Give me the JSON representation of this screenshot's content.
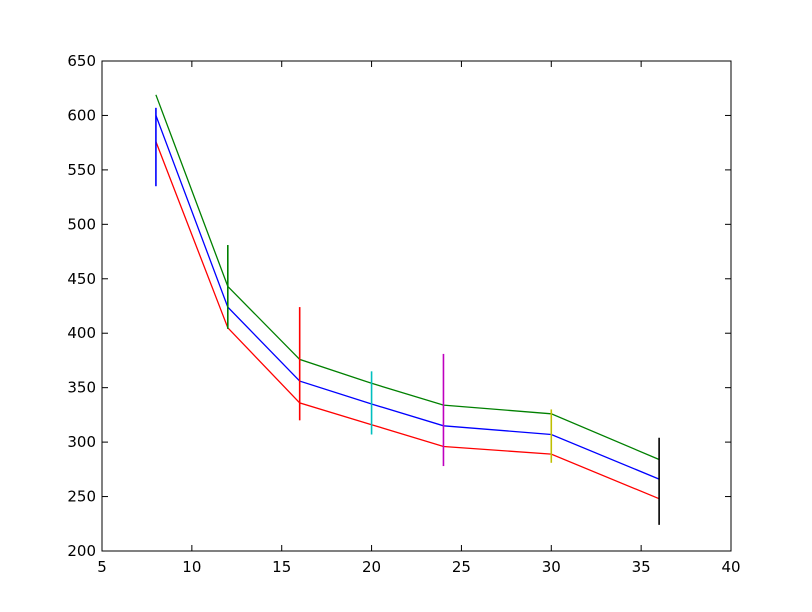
{
  "chart_data": {
    "type": "line",
    "title": "",
    "xlabel": "",
    "ylabel": "",
    "xlim": [
      5,
      40
    ],
    "ylim": [
      200,
      650
    ],
    "xticks": [
      5,
      10,
      15,
      20,
      25,
      30,
      35,
      40
    ],
    "yticks": [
      200,
      250,
      300,
      350,
      400,
      450,
      500,
      550,
      600,
      650
    ],
    "grid": false,
    "legend": "none",
    "x": [
      8,
      12,
      16,
      20,
      24,
      30,
      36
    ],
    "series": [
      {
        "color": "#008000",
        "values": [
          619,
          443,
          376,
          354,
          334,
          326,
          284
        ]
      },
      {
        "color": "#0000ff",
        "values": [
          600,
          424,
          356,
          335,
          315,
          307,
          266
        ]
      },
      {
        "color": "#ff0000",
        "values": [
          576,
          405,
          336,
          316,
          296,
          289,
          248
        ]
      }
    ],
    "error_bars": [
      {
        "x": 8,
        "low": 535,
        "high": 607,
        "color": "#0000ff"
      },
      {
        "x": 12,
        "low": 404,
        "high": 481,
        "color": "#008000"
      },
      {
        "x": 16,
        "low": 320,
        "high": 424,
        "color": "#ff0000"
      },
      {
        "x": 20,
        "low": 307,
        "high": 365,
        "color": "#00bfbf"
      },
      {
        "x": 24,
        "low": 278,
        "high": 381,
        "color": "#bf00bf"
      },
      {
        "x": 30,
        "low": 281,
        "high": 330,
        "color": "#bfbf00"
      },
      {
        "x": 36,
        "low": 224,
        "high": 304,
        "color": "#000000"
      }
    ]
  }
}
